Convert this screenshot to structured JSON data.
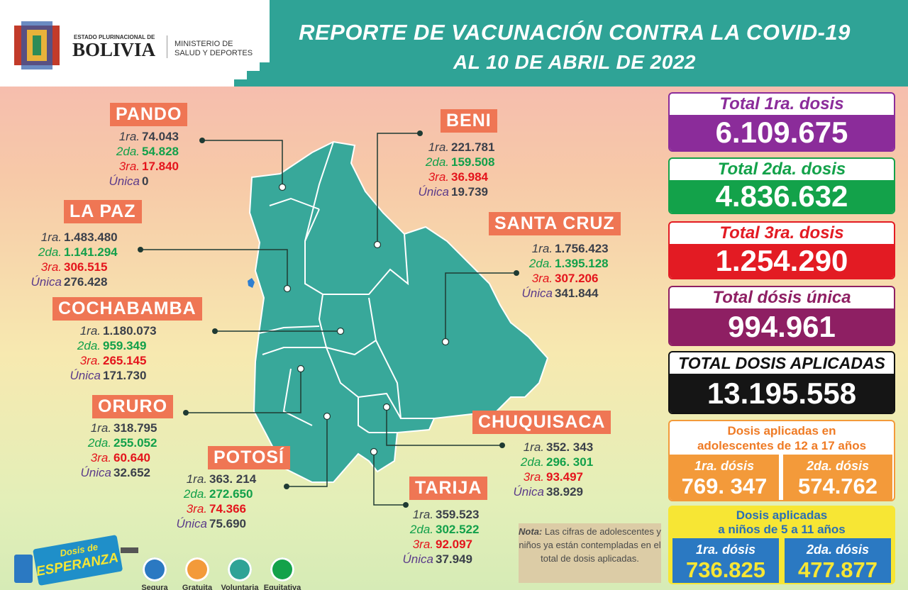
{
  "header": {
    "gov_small": "ESTADO PLURINACIONAL DE",
    "country": "BOLIVIA",
    "ministry_line1": "MINISTERIO DE",
    "ministry_line2": "SALUD Y DEPORTES",
    "title": "REPORTE DE VACUNACIÓN CONTRA LA COVID-19",
    "subtitle": "AL 10 DE ABRIL DE 2022"
  },
  "departments": [
    {
      "name": "PANDO",
      "rows": [
        {
          "label": "1ra.",
          "value": "74.043"
        },
        {
          "label": "2da.",
          "value": "54.828"
        },
        {
          "label": "3ra.",
          "value": "17.840"
        },
        {
          "label": "Única",
          "value": "0"
        }
      ]
    },
    {
      "name": "BENI",
      "rows": [
        {
          "label": "1ra.",
          "value": "221.781"
        },
        {
          "label": "2da.",
          "value": "159.508"
        },
        {
          "label": "3ra.",
          "value": "36.984"
        },
        {
          "label": "Única",
          "value": "19.739"
        }
      ]
    },
    {
      "name": "LA PAZ",
      "rows": [
        {
          "label": "1ra.",
          "value": "1.483.480"
        },
        {
          "label": "2da.",
          "value": "1.141.294"
        },
        {
          "label": "3ra.",
          "value": "306.515"
        },
        {
          "label": "Única",
          "value": "276.428"
        }
      ]
    },
    {
      "name": "SANTA CRUZ",
      "rows": [
        {
          "label": "1ra.",
          "value": "1.756.423"
        },
        {
          "label": "2da.",
          "value": "1.395.128"
        },
        {
          "label": "3ra.",
          "value": "307.206"
        },
        {
          "label": "Única",
          "value": "341.844"
        }
      ]
    },
    {
      "name": "COCHABAMBA",
      "rows": [
        {
          "label": "1ra.",
          "value": "1.180.073"
        },
        {
          "label": "2da.",
          "value": "959.349"
        },
        {
          "label": "3ra.",
          "value": "265.145"
        },
        {
          "label": "Única",
          "value": "171.730"
        }
      ]
    },
    {
      "name": "ORURO",
      "rows": [
        {
          "label": "1ra.",
          "value": "318.795"
        },
        {
          "label": "2da.",
          "value": "255.052"
        },
        {
          "label": "3ra.",
          "value": "60.640"
        },
        {
          "label": "Única",
          "value": "32.652"
        }
      ]
    },
    {
      "name": "POTOSÍ",
      "rows": [
        {
          "label": "1ra.",
          "value": "363. 214"
        },
        {
          "label": "2da.",
          "value": "272.650"
        },
        {
          "label": "3ra.",
          "value": "74.366"
        },
        {
          "label": "Única",
          "value": "75.690"
        }
      ]
    },
    {
      "name": "CHUQUISACA",
      "rows": [
        {
          "label": "1ra.",
          "value": "352. 343"
        },
        {
          "label": "2da.",
          "value": "296. 301"
        },
        {
          "label": "3ra.",
          "value": "93.497"
        },
        {
          "label": "Única",
          "value": "38.929"
        }
      ]
    },
    {
      "name": "TARIJA",
      "rows": [
        {
          "label": "1ra.",
          "value": "359.523"
        },
        {
          "label": "2da.",
          "value": "302.522"
        },
        {
          "label": "3ra.",
          "value": "92.097"
        },
        {
          "label": "Única",
          "value": "37.949"
        }
      ]
    }
  ],
  "totals": [
    {
      "label": "Total 1ra. dosis",
      "value": "6.109.675"
    },
    {
      "label": "Total 2da. dosis",
      "value": "4.836.632"
    },
    {
      "label": "Total 3ra. dosis",
      "value": "1.254.290"
    },
    {
      "label": "Total dósis única",
      "value": "994.961"
    },
    {
      "label": "TOTAL DOSIS APLICADAS",
      "value": "13.195.558"
    }
  ],
  "adolescents": {
    "title_line1": "Dosis aplicadas en",
    "title_line2": "adolescentes de 12 a 17 años",
    "items": [
      {
        "label": "1ra. dósis",
        "value": "769. 347"
      },
      {
        "label": "2da. dósis",
        "value": "574.762"
      }
    ]
  },
  "children": {
    "title_line1": "Dosis aplicadas",
    "title_line2": "a niños de 5 a 11 años",
    "items": [
      {
        "label": "1ra. dósis",
        "value": "736.825"
      },
      {
        "label": "2da. dósis",
        "value": "477.877"
      }
    ]
  },
  "note": {
    "label": "Nota:",
    "text": "Las cifras de adolescentes y niños ya están contempladas en el total de dosis aplicadas."
  },
  "campaign": {
    "logo_line1": "Dosis de",
    "logo_line2": "ESPERANZA",
    "badges": [
      "Segura",
      "Gratuita",
      "Voluntaria",
      "Equitativa"
    ]
  }
}
